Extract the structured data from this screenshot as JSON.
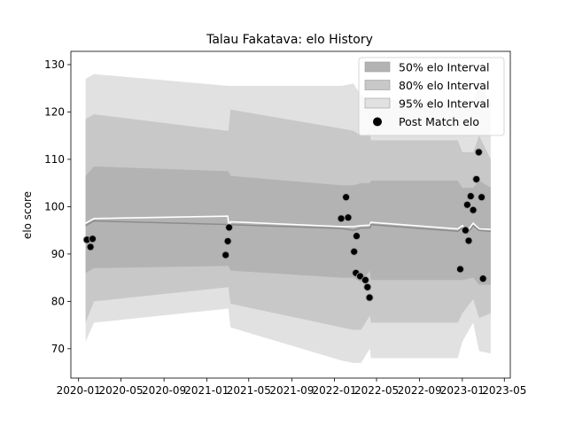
{
  "chart_data": {
    "type": "area",
    "title": "Talau Fakatava: elo History",
    "xlabel": "",
    "ylabel": "elo score",
    "xlim": [
      "2019-12-10",
      "2023-05-18"
    ],
    "ylim": [
      63.8,
      132.8
    ],
    "x_ticks": [
      "2020-01",
      "2020-05",
      "2020-09",
      "2021-01",
      "2021-05",
      "2021-09",
      "2022-01",
      "2022-05",
      "2022-09",
      "2023-01",
      "2023-05"
    ],
    "x_tick_labels": [
      "2020-01",
      "2020-05",
      "2020-09",
      "2021-01",
      "2021-05",
      "2021-09",
      "2022-01",
      "2022-05",
      "2022-09",
      "2023-01",
      "2023-05"
    ],
    "y_ticks": [
      70,
      80,
      90,
      100,
      110,
      120,
      130
    ],
    "grid": false,
    "legend_position": "upper right",
    "legend": [
      {
        "label": "50% elo Interval",
        "kind": "patch",
        "color": "#b3b3b3"
      },
      {
        "label": "80% elo Interval",
        "kind": "patch",
        "color": "#c8c8c8"
      },
      {
        "label": "95% elo Interval",
        "kind": "patch",
        "color": "#e1e1e1"
      },
      {
        "label": "Post Match elo",
        "kind": "marker",
        "color": "#000000"
      }
    ],
    "colors": {
      "band95": "#e1e1e1",
      "band80": "#c8c8c8",
      "band50": "#b3b3b3",
      "mean_line": "#ffffff",
      "median_line": "#8c8c8c",
      "points": "#000000"
    },
    "bands": {
      "x": [
        "2020-01-21",
        "2020-02-14",
        "2021-03-04",
        "2021-03-10",
        "2022-01-21",
        "2022-02-24",
        "2022-03-18",
        "2022-04-12",
        "2022-04-15",
        "2022-12-19",
        "2023-01-01",
        "2023-02-01",
        "2023-02-18",
        "2023-03-23"
      ],
      "band95": {
        "lower": [
          71.5,
          75.5,
          78.5,
          74.5,
          67.5,
          67.0,
          67.0,
          70.0,
          68.0,
          68.0,
          71.5,
          75.5,
          69.5,
          69.0
        ],
        "upper": [
          127.0,
          128.0,
          125.5,
          125.5,
          125.5,
          126.0,
          123.5,
          122.5,
          122.5,
          122.5,
          121.0,
          121.0,
          127.0,
          122.0
        ]
      },
      "band80": {
        "lower": [
          75.5,
          80.0,
          83.0,
          79.5,
          74.5,
          74.0,
          74.0,
          77.0,
          75.5,
          75.5,
          77.5,
          80.5,
          76.5,
          77.5
        ],
        "upper": [
          118.5,
          119.5,
          116.0,
          120.5,
          116.5,
          116.0,
          115.0,
          115.5,
          114.0,
          114.0,
          111.5,
          111.5,
          115.0,
          110.0
        ]
      },
      "band50": {
        "lower": [
          86.0,
          87.0,
          87.5,
          86.5,
          85.0,
          85.0,
          84.0,
          86.5,
          84.5,
          84.5,
          84.5,
          85.0,
          83.5,
          83.5
        ],
        "upper": [
          106.5,
          108.5,
          107.5,
          106.5,
          104.5,
          104.5,
          105.0,
          105.0,
          105.5,
          105.5,
          104.0,
          104.0,
          105.5,
          104.0
        ]
      }
    },
    "series": [
      {
        "kind": "line",
        "role": "mean",
        "x": [
          "2020-01-21",
          "2020-02-14",
          "2021-03-02",
          "2021-03-06",
          "2021-03-10",
          "2022-01-21",
          "2022-02-24",
          "2022-03-18",
          "2022-04-12",
          "2022-04-15",
          "2022-12-19",
          "2023-01-01",
          "2023-01-15",
          "2023-02-01",
          "2023-02-18",
          "2023-03-23"
        ],
        "y": [
          96.5,
          97.5,
          98.0,
          95.5,
          96.8,
          95.8,
          95.8,
          96.0,
          96.1,
          96.7,
          95.3,
          96.0,
          94.8,
          96.5,
          95.3,
          95.2
        ]
      },
      {
        "kind": "line",
        "role": "median",
        "x": [
          "2020-01-21",
          "2020-02-14",
          "2021-03-10",
          "2022-01-21",
          "2022-02-24",
          "2022-03-18",
          "2022-04-12",
          "2022-04-15",
          "2022-12-19",
          "2023-01-01",
          "2023-01-15",
          "2023-02-01",
          "2023-02-18",
          "2023-03-23"
        ],
        "y": [
          96.0,
          97.0,
          96.2,
          95.4,
          95.0,
          95.5,
          95.5,
          96.2,
          94.8,
          95.5,
          94.3,
          96.0,
          95.0,
          94.8
        ]
      },
      {
        "kind": "scatter",
        "name": "Post Match elo",
        "x": [
          "2020-01-25",
          "2020-02-04",
          "2020-02-10",
          "2021-02-24",
          "2021-03-02",
          "2021-03-06",
          "2022-01-20",
          "2022-02-03",
          "2022-02-09",
          "2022-02-26",
          "2022-03-03",
          "2022-03-05",
          "2022-03-15",
          "2022-03-30",
          "2022-04-05",
          "2022-04-11",
          "2022-12-26",
          "2023-01-10",
          "2023-01-15",
          "2023-01-19",
          "2023-01-25",
          "2023-02-01",
          "2023-02-10",
          "2023-02-17",
          "2023-02-25",
          "2023-03-01"
        ],
        "y": [
          93.0,
          91.5,
          93.2,
          89.8,
          92.7,
          95.6,
          97.5,
          102.0,
          97.7,
          90.5,
          86.0,
          93.8,
          85.3,
          84.5,
          83.0,
          80.8,
          86.8,
          95.0,
          100.4,
          92.8,
          102.2,
          99.3,
          105.8,
          111.5,
          102.0,
          84.8
        ]
      }
    ]
  }
}
